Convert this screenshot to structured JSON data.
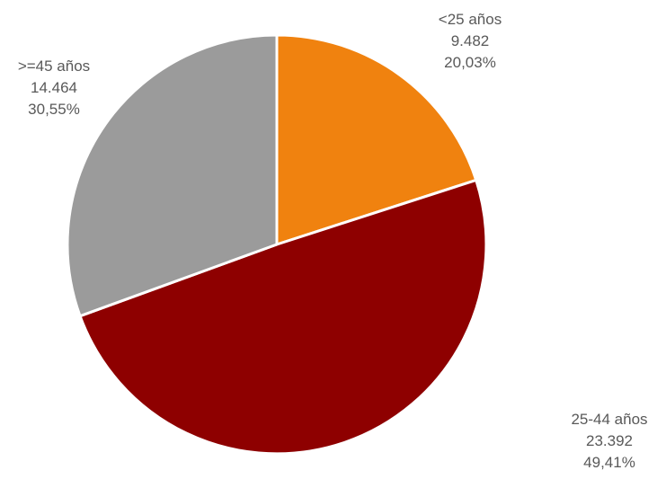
{
  "chart_data": {
    "type": "pie",
    "title": "",
    "slices": [
      {
        "label": "<25 años",
        "value": 9482,
        "value_text": "9.482",
        "percent_text": "20,03%",
        "color": "#F0820F"
      },
      {
        "label": "25-44 años",
        "value": 23392,
        "value_text": "23.392",
        "percent_text": "49,41%",
        "color": "#8E0000"
      },
      {
        "label": ">=45 años",
        "value": 14464,
        "value_text": "14.464",
        "percent_text": "30,55%",
        "color": "#9B9B9B"
      }
    ],
    "start_angle_deg": 0,
    "direction": "clockwise",
    "legend": "none",
    "label_color": "#595959"
  }
}
